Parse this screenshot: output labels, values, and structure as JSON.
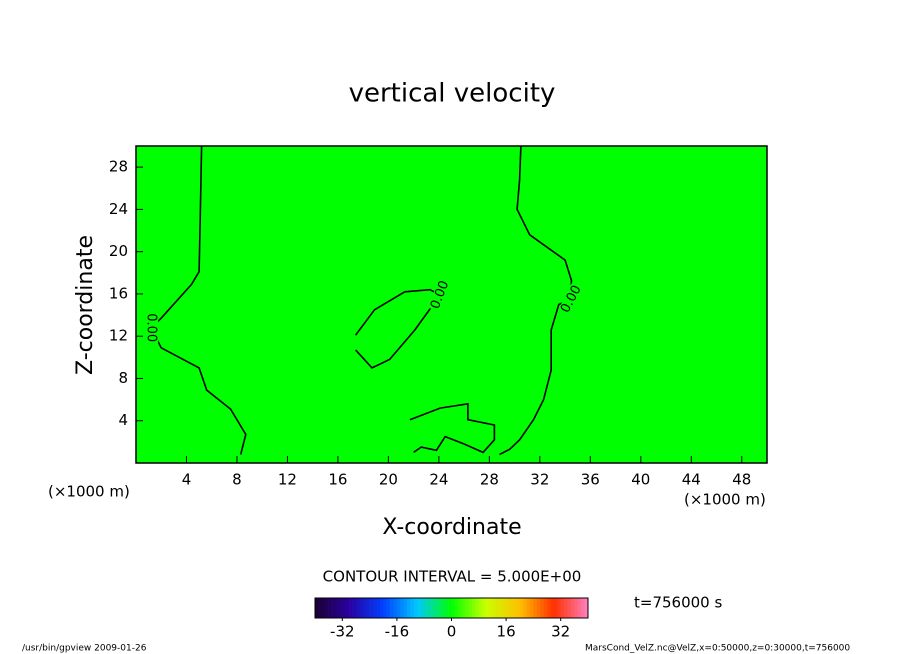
{
  "chart_data": {
    "type": "contour",
    "title": "vertical velocity",
    "x_label": "X-coordinate",
    "y_label": "Z-coordinate",
    "x_unit": "(×1000 m)",
    "y_unit": "(×1000 m)",
    "xlim": [
      0,
      50
    ],
    "ylim": [
      0,
      30
    ],
    "xticks": [
      4,
      8,
      12,
      16,
      20,
      24,
      28,
      32,
      36,
      40,
      44,
      48
    ],
    "yticks": [
      4,
      8,
      12,
      16,
      20,
      24,
      28
    ],
    "fill_color": "#00ff00",
    "line_color": "#000000",
    "contours": [
      {
        "label": "0.00",
        "x": [
          5.2,
          5.1,
          5.0,
          4.4,
          2.0,
          1.2,
          2.0,
          5.0,
          5.6,
          7.5,
          8.7,
          8.3
        ],
        "y": [
          30,
          24,
          18.1,
          16.9,
          13.7,
          12.8,
          10.9,
          9.0,
          6.9,
          5.1,
          2.7,
          0.8
        ]
      },
      {
        "label": "0.00",
        "x": [
          17.4,
          18.7,
          20.1,
          22.1,
          24.1,
          23.3,
          21.3,
          18.9,
          17.4
        ],
        "y": [
          10.7,
          9.0,
          9.8,
          12.6,
          15.9,
          16.4,
          16.2,
          14.5,
          12.1
        ]
      },
      {
        "label": "0.00",
        "x": [
          30.5,
          30.4,
          30.2,
          31.2,
          34.0,
          34.5,
          34.5,
          33.5,
          32.9,
          32.9,
          32.3,
          31.5,
          30.4,
          29.6,
          28.8
        ],
        "y": [
          30,
          26.8,
          24,
          21.6,
          19.2,
          17.3,
          15.5,
          15,
          12.6,
          8.8,
          6.0,
          4.1,
          2.2,
          1.3,
          0.8
        ]
      },
      {
        "x": [
          21.7,
          24.1,
          26.3,
          26.3,
          28.4,
          28.4,
          27.5,
          26.0,
          24.5,
          23.8,
          22.6,
          22.0
        ],
        "y": [
          4.1,
          5.2,
          5.6,
          4.1,
          3.6,
          2.2,
          1.0,
          1.8,
          2.5,
          1.2,
          1.5,
          1.0
        ]
      }
    ],
    "contour_interval_label": "CONTOUR INTERVAL = 5.000E+00",
    "time_label": "t=756000 s",
    "colorbar": {
      "lim": [
        -40,
        40
      ],
      "ticks": [
        -32,
        -16,
        0,
        16,
        32
      ],
      "colors": [
        "#1a0033",
        "#2a00a0",
        "#0040ff",
        "#00c8ff",
        "#00ff00",
        "#c8ff00",
        "#ffc000",
        "#ff3000",
        "#ff80c0"
      ]
    },
    "footer_left": "/usr/bin/gpview  2009-01-26",
    "footer_right": "MarsCond_VelZ.nc@VelZ,x=0:50000,z=0:30000,t=756000"
  }
}
